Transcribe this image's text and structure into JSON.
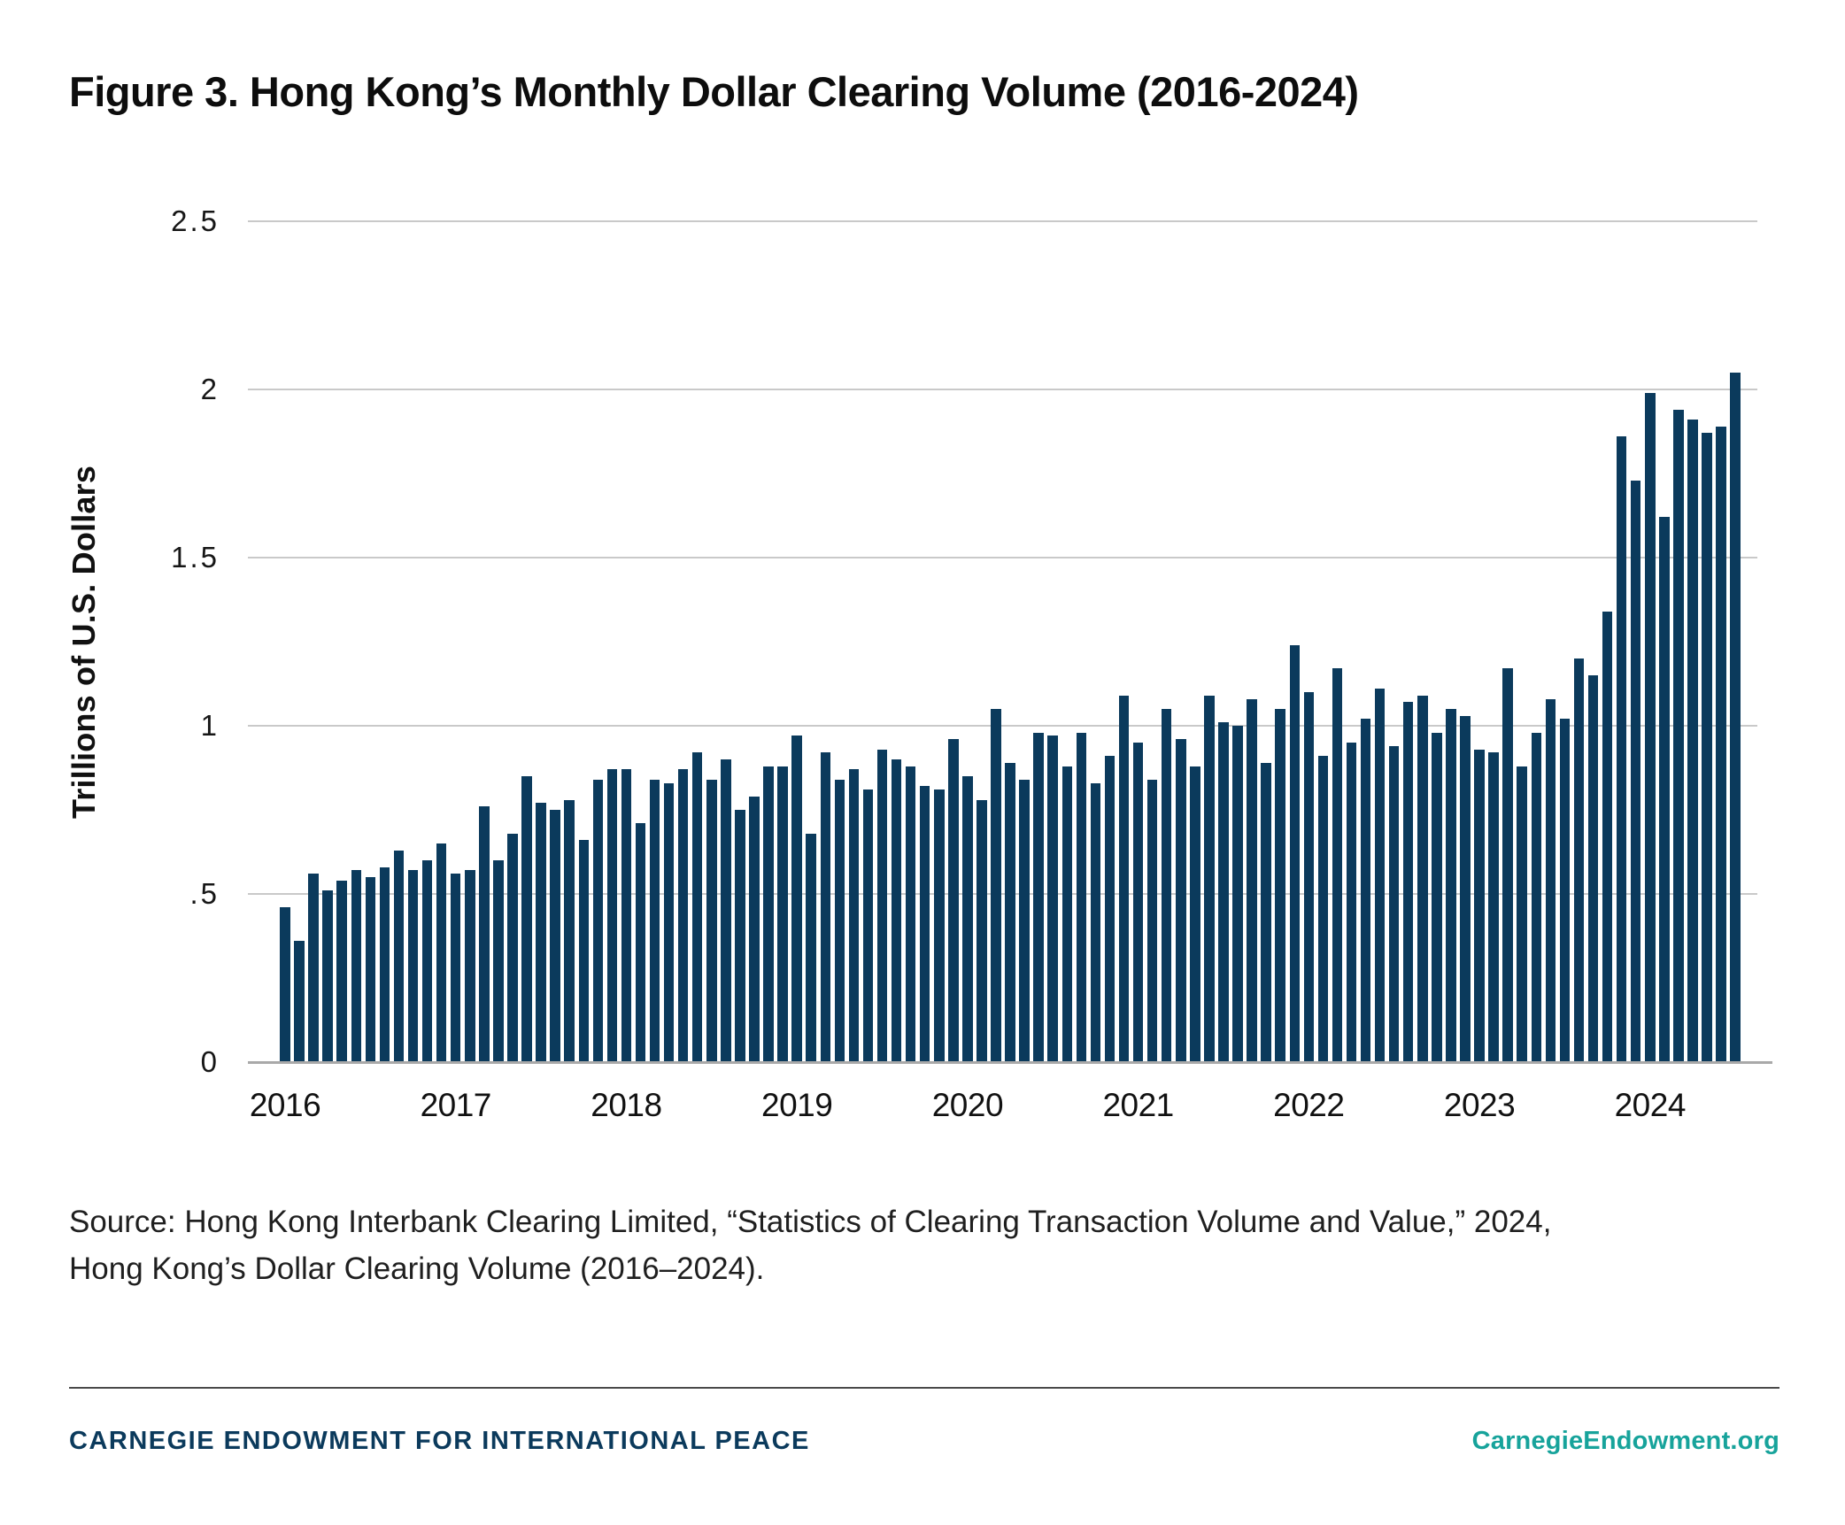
{
  "figure": {
    "title": "Figure 3. Hong Kong’s Monthly Dollar Clearing Volume (2016-2024)",
    "y_axis_title": "Trillions of U.S. Dollars"
  },
  "chart_data": {
    "type": "bar",
    "title": "Figure 3. Hong Kong’s Monthly Dollar Clearing Volume (2016-2024)",
    "xlabel": "",
    "ylabel": "Trillions of U.S. Dollars",
    "ylim": [
      0,
      2.5
    ],
    "y_tick_labels": [
      "0",
      ".5",
      "1",
      "1.5",
      "2",
      "2.5"
    ],
    "y_tick_values": [
      0,
      0.5,
      1,
      1.5,
      2,
      2.5
    ],
    "x_tick_labels": [
      "2016",
      "2017",
      "2018",
      "2019",
      "2020",
      "2021",
      "2022",
      "2023",
      "2024"
    ],
    "grid": "horizontal",
    "legend": "none",
    "bar_color": "#0b3a5c",
    "series": [
      {
        "year": "2016",
        "monthly_values": [
          0.46,
          0.36,
          0.56,
          0.51,
          0.54,
          0.57,
          0.55,
          0.58,
          0.63,
          0.57,
          0.6,
          0.65
        ]
      },
      {
        "year": "2017",
        "monthly_values": [
          0.56,
          0.57,
          0.76,
          0.6,
          0.68,
          0.85,
          0.77,
          0.75,
          0.78,
          0.66,
          0.84,
          0.87
        ]
      },
      {
        "year": "2018",
        "monthly_values": [
          0.87,
          0.71,
          0.84,
          0.83,
          0.87,
          0.92,
          0.84,
          0.9,
          0.75,
          0.79,
          0.88,
          0.88
        ]
      },
      {
        "year": "2019",
        "monthly_values": [
          0.97,
          0.68,
          0.92,
          0.84,
          0.87,
          0.81,
          0.93,
          0.9,
          0.88,
          0.82,
          0.81,
          0.96
        ]
      },
      {
        "year": "2020",
        "monthly_values": [
          0.85,
          0.78,
          1.05,
          0.89,
          0.84,
          0.98,
          0.97,
          0.88,
          0.98,
          0.83,
          0.91,
          1.09
        ]
      },
      {
        "year": "2021",
        "monthly_values": [
          0.95,
          0.84,
          1.05,
          0.96,
          0.88,
          1.09,
          1.01,
          1.0,
          1.08,
          0.89,
          1.05,
          1.24
        ]
      },
      {
        "year": "2022",
        "monthly_values": [
          1.1,
          0.91,
          1.17,
          0.95,
          1.02,
          1.11,
          0.94,
          1.07,
          1.09,
          0.98,
          1.05,
          1.03
        ]
      },
      {
        "year": "2023",
        "monthly_values": [
          0.93,
          0.92,
          1.17,
          0.88,
          0.98,
          1.08,
          1.02,
          1.2,
          1.15,
          1.34,
          1.86,
          1.73
        ]
      },
      {
        "year": "2024",
        "monthly_values": [
          1.99,
          1.62,
          1.94,
          1.91,
          1.87,
          1.89,
          2.05
        ]
      }
    ]
  },
  "source": {
    "line1": "Source: Hong Kong Interbank Clearing Limited, “Statistics of Clearing Transaction Volume and Value,” 2024,",
    "line2": "Hong Kong’s Dollar Clearing Volume (2016–2024)."
  },
  "footer": {
    "left_text": "CARNEGIE ENDOWMENT FOR INTERNATIONAL PEACE",
    "right_text": "CarnegieEndowment.org",
    "navy_color": "#0b3a5c",
    "teal_color": "#17a39b"
  }
}
